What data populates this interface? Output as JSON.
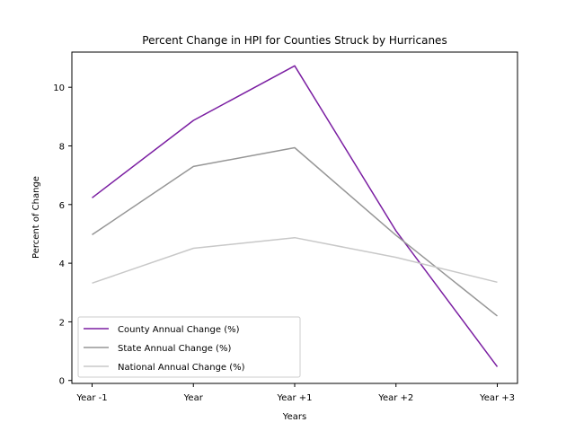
{
  "chart_data": {
    "type": "line",
    "title": "Percent Change in HPI for Counties Struck by Hurricanes",
    "xlabel": "Years",
    "ylabel": "Percent of Change",
    "categories": [
      "Year -1",
      "Year",
      "Year +1",
      "Year +2",
      "Year +3"
    ],
    "ylim": [
      -0.1,
      11.2
    ],
    "yticks": [
      0,
      2,
      4,
      6,
      8,
      10
    ],
    "grid": false,
    "legend_position": "lower-left",
    "series": [
      {
        "name": "County Annual Change (%)",
        "color": "#7b1fa2",
        "values": [
          6.23,
          8.87,
          10.73,
          5.1,
          0.47
        ]
      },
      {
        "name": "State Annual Change (%)",
        "color": "#969696",
        "values": [
          4.97,
          7.3,
          7.94,
          4.95,
          2.2
        ]
      },
      {
        "name": "National Annual Change (%)",
        "color": "#c8c8c8",
        "values": [
          3.32,
          4.51,
          4.87,
          4.2,
          3.35
        ]
      }
    ]
  }
}
